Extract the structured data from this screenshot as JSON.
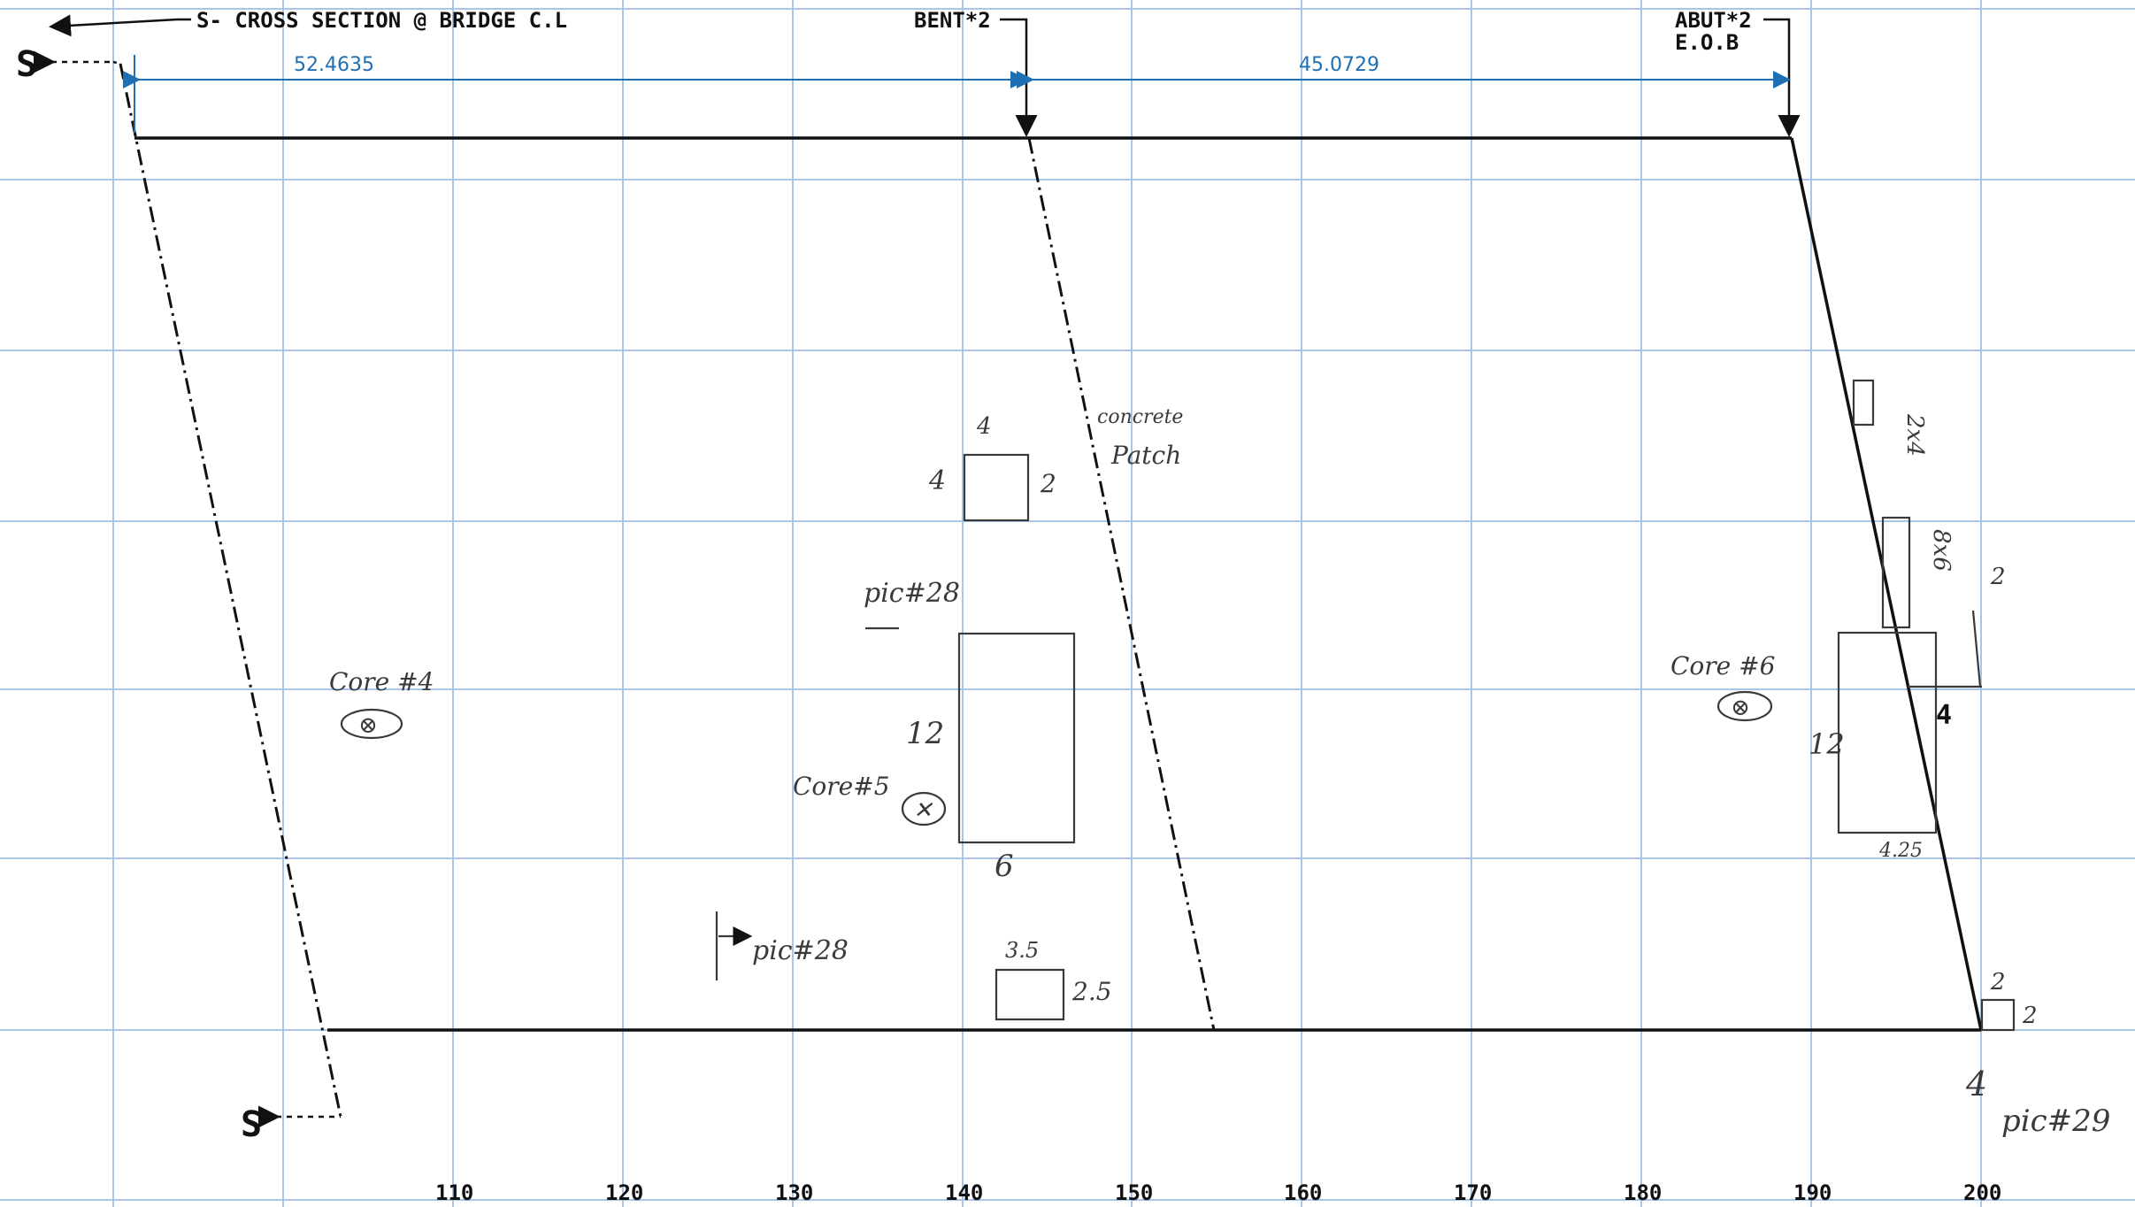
{
  "labels": {
    "section": "S- CROSS SECTION @ BRIDGE C.L",
    "bent": "BENT*2",
    "abut": "ABUT*2",
    "eob": "E.O.B",
    "section_mark_top": "S",
    "section_mark_bottom": "S"
  },
  "dimensions": {
    "span1": "52.4635",
    "span2": "45.0729"
  },
  "axis": {
    "ticks": [
      "110",
      "120",
      "130",
      "140",
      "150",
      "160",
      "170",
      "180",
      "190",
      "200"
    ]
  },
  "notes": {
    "patch_top_w": "4",
    "patch_top_h": "4",
    "patch_top_d": "2",
    "concrete": "concrete",
    "patch": "Patch",
    "pic28_a": "pic#28",
    "pic28_b": "pic#28",
    "core4": "Core #4",
    "core5": "Core#5",
    "core6": "Core #6",
    "mid_h": "12",
    "mid_w": "6",
    "small_w": "3.5",
    "small_h": "2.5",
    "right_top": "2x4",
    "right_mid": "8x6",
    "right_2": "2",
    "right_4": "4",
    "right_12": "12",
    "right_425": "4.25",
    "corner_2a": "2",
    "corner_2b": "2",
    "pic29": "pic#29",
    "pic29_arrow": "4"
  },
  "colors": {
    "grid": "#a9c6e8",
    "dimension": "#1f6fb5",
    "linework": "#111111",
    "handwriting": "#3a3a3a"
  }
}
